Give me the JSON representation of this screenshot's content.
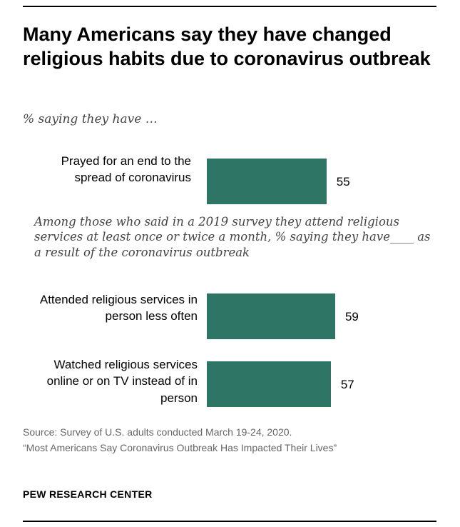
{
  "title": "Many Americans say they have changed religious habits due to coronavirus outbreak",
  "subtitle": "% saying they have …",
  "group_note": "Among those who said in a 2019 survey they attend religious services at least once or twice a month, % saying they have____ as a result of the coronavirus outbreak",
  "source_line": "Source: Survey of U.S. adults conducted March 19-24, 2020.",
  "report_line": "“Most Americans Say Coronavirus Outbreak Has Impacted Their Lives”",
  "brand": "PEW RESEARCH CENTER",
  "colors": {
    "bar": "#2e7565"
  },
  "chart_data": {
    "type": "bar",
    "orientation": "horizontal",
    "categories": [
      "Prayed for an end to the spread of coronavirus",
      "Attended religious services in person less often",
      "Watched religious services online or on TV instead of in person"
    ],
    "values": [
      55,
      59,
      57
    ],
    "labels": [
      "55",
      "59",
      "57"
    ],
    "title": "",
    "xlabel": "",
    "ylabel": "",
    "xlim": [
      0,
      100
    ],
    "grid": false,
    "legend": "none"
  }
}
